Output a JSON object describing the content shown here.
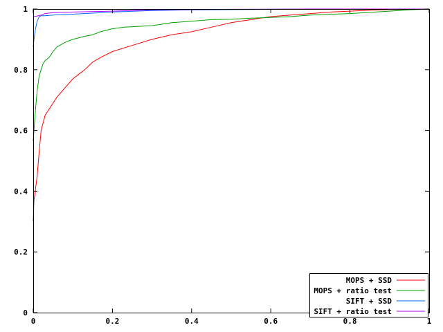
{
  "chart_data": {
    "type": "line",
    "title": "",
    "xlabel": "",
    "ylabel": "",
    "xlim": [
      0,
      1
    ],
    "ylim": [
      0,
      1
    ],
    "x_ticks": [
      "0",
      "0.2",
      "0.4",
      "0.6",
      "0.8",
      "1"
    ],
    "y_ticks": [
      "0",
      "0.2",
      "0.4",
      "0.6",
      "0.8",
      "1"
    ],
    "grid": false,
    "legend_position": "bottom-right",
    "series": [
      {
        "name": "MOPS + SSD",
        "color": "#ff0000",
        "points": [
          [
            0,
            0.3
          ],
          [
            0.002,
            0.37
          ],
          [
            0.005,
            0.4
          ],
          [
            0.01,
            0.45
          ],
          [
            0.015,
            0.53
          ],
          [
            0.02,
            0.6
          ],
          [
            0.03,
            0.65
          ],
          [
            0.04,
            0.67
          ],
          [
            0.05,
            0.69
          ],
          [
            0.06,
            0.71
          ],
          [
            0.08,
            0.74
          ],
          [
            0.1,
            0.77
          ],
          [
            0.12,
            0.79
          ],
          [
            0.13,
            0.8
          ],
          [
            0.15,
            0.825
          ],
          [
            0.17,
            0.84
          ],
          [
            0.2,
            0.86
          ],
          [
            0.25,
            0.88
          ],
          [
            0.3,
            0.9
          ],
          [
            0.35,
            0.915
          ],
          [
            0.4,
            0.925
          ],
          [
            0.45,
            0.94
          ],
          [
            0.5,
            0.955
          ],
          [
            0.55,
            0.965
          ],
          [
            0.6,
            0.975
          ],
          [
            0.65,
            0.98
          ],
          [
            0.7,
            0.985
          ],
          [
            0.75,
            0.99
          ],
          [
            0.8,
            0.993
          ],
          [
            0.85,
            0.996
          ],
          [
            0.9,
            0.998
          ],
          [
            0.95,
            0.999
          ],
          [
            1,
            1
          ]
        ]
      },
      {
        "name": "MOPS + ratio test",
        "color": "#00a000",
        "points": [
          [
            0,
            0.565
          ],
          [
            0.002,
            0.6
          ],
          [
            0.005,
            0.66
          ],
          [
            0.01,
            0.73
          ],
          [
            0.015,
            0.78
          ],
          [
            0.02,
            0.8
          ],
          [
            0.025,
            0.82
          ],
          [
            0.03,
            0.83
          ],
          [
            0.04,
            0.84
          ],
          [
            0.05,
            0.86
          ],
          [
            0.06,
            0.875
          ],
          [
            0.08,
            0.89
          ],
          [
            0.1,
            0.9
          ],
          [
            0.13,
            0.91
          ],
          [
            0.15,
            0.915
          ],
          [
            0.17,
            0.925
          ],
          [
            0.2,
            0.935
          ],
          [
            0.23,
            0.94
          ],
          [
            0.3,
            0.945
          ],
          [
            0.35,
            0.955
          ],
          [
            0.4,
            0.96
          ],
          [
            0.45,
            0.965
          ],
          [
            0.5,
            0.966
          ],
          [
            0.55,
            0.97
          ],
          [
            0.6,
            0.972
          ],
          [
            0.65,
            0.975
          ],
          [
            0.7,
            0.98
          ],
          [
            0.8,
            0.985
          ],
          [
            0.9,
            0.993
          ],
          [
            0.95,
            0.997
          ],
          [
            1,
            1
          ]
        ]
      },
      {
        "name": "SIFT + SSD",
        "color": "#0066ff",
        "points": [
          [
            0,
            0.875
          ],
          [
            0.002,
            0.9
          ],
          [
            0.005,
            0.93
          ],
          [
            0.01,
            0.96
          ],
          [
            0.015,
            0.975
          ],
          [
            0.02,
            0.978
          ],
          [
            0.03,
            0.978
          ],
          [
            0.05,
            0.98
          ],
          [
            0.1,
            0.983
          ],
          [
            0.2,
            0.99
          ],
          [
            0.3,
            0.995
          ],
          [
            0.4,
            0.997
          ],
          [
            0.5,
            0.998
          ],
          [
            0.6,
            0.999
          ],
          [
            1,
            1
          ]
        ]
      },
      {
        "name": "SIFT + ratio test",
        "color": "#b000ff",
        "points": [
          [
            0,
            0.975
          ],
          [
            0.01,
            0.977
          ],
          [
            0.02,
            0.98
          ],
          [
            0.03,
            0.985
          ],
          [
            0.05,
            0.988
          ],
          [
            0.1,
            0.99
          ],
          [
            0.2,
            0.993
          ],
          [
            0.3,
            0.997
          ],
          [
            0.5,
            0.999
          ],
          [
            0.7,
            1
          ],
          [
            1,
            1
          ]
        ]
      }
    ]
  }
}
